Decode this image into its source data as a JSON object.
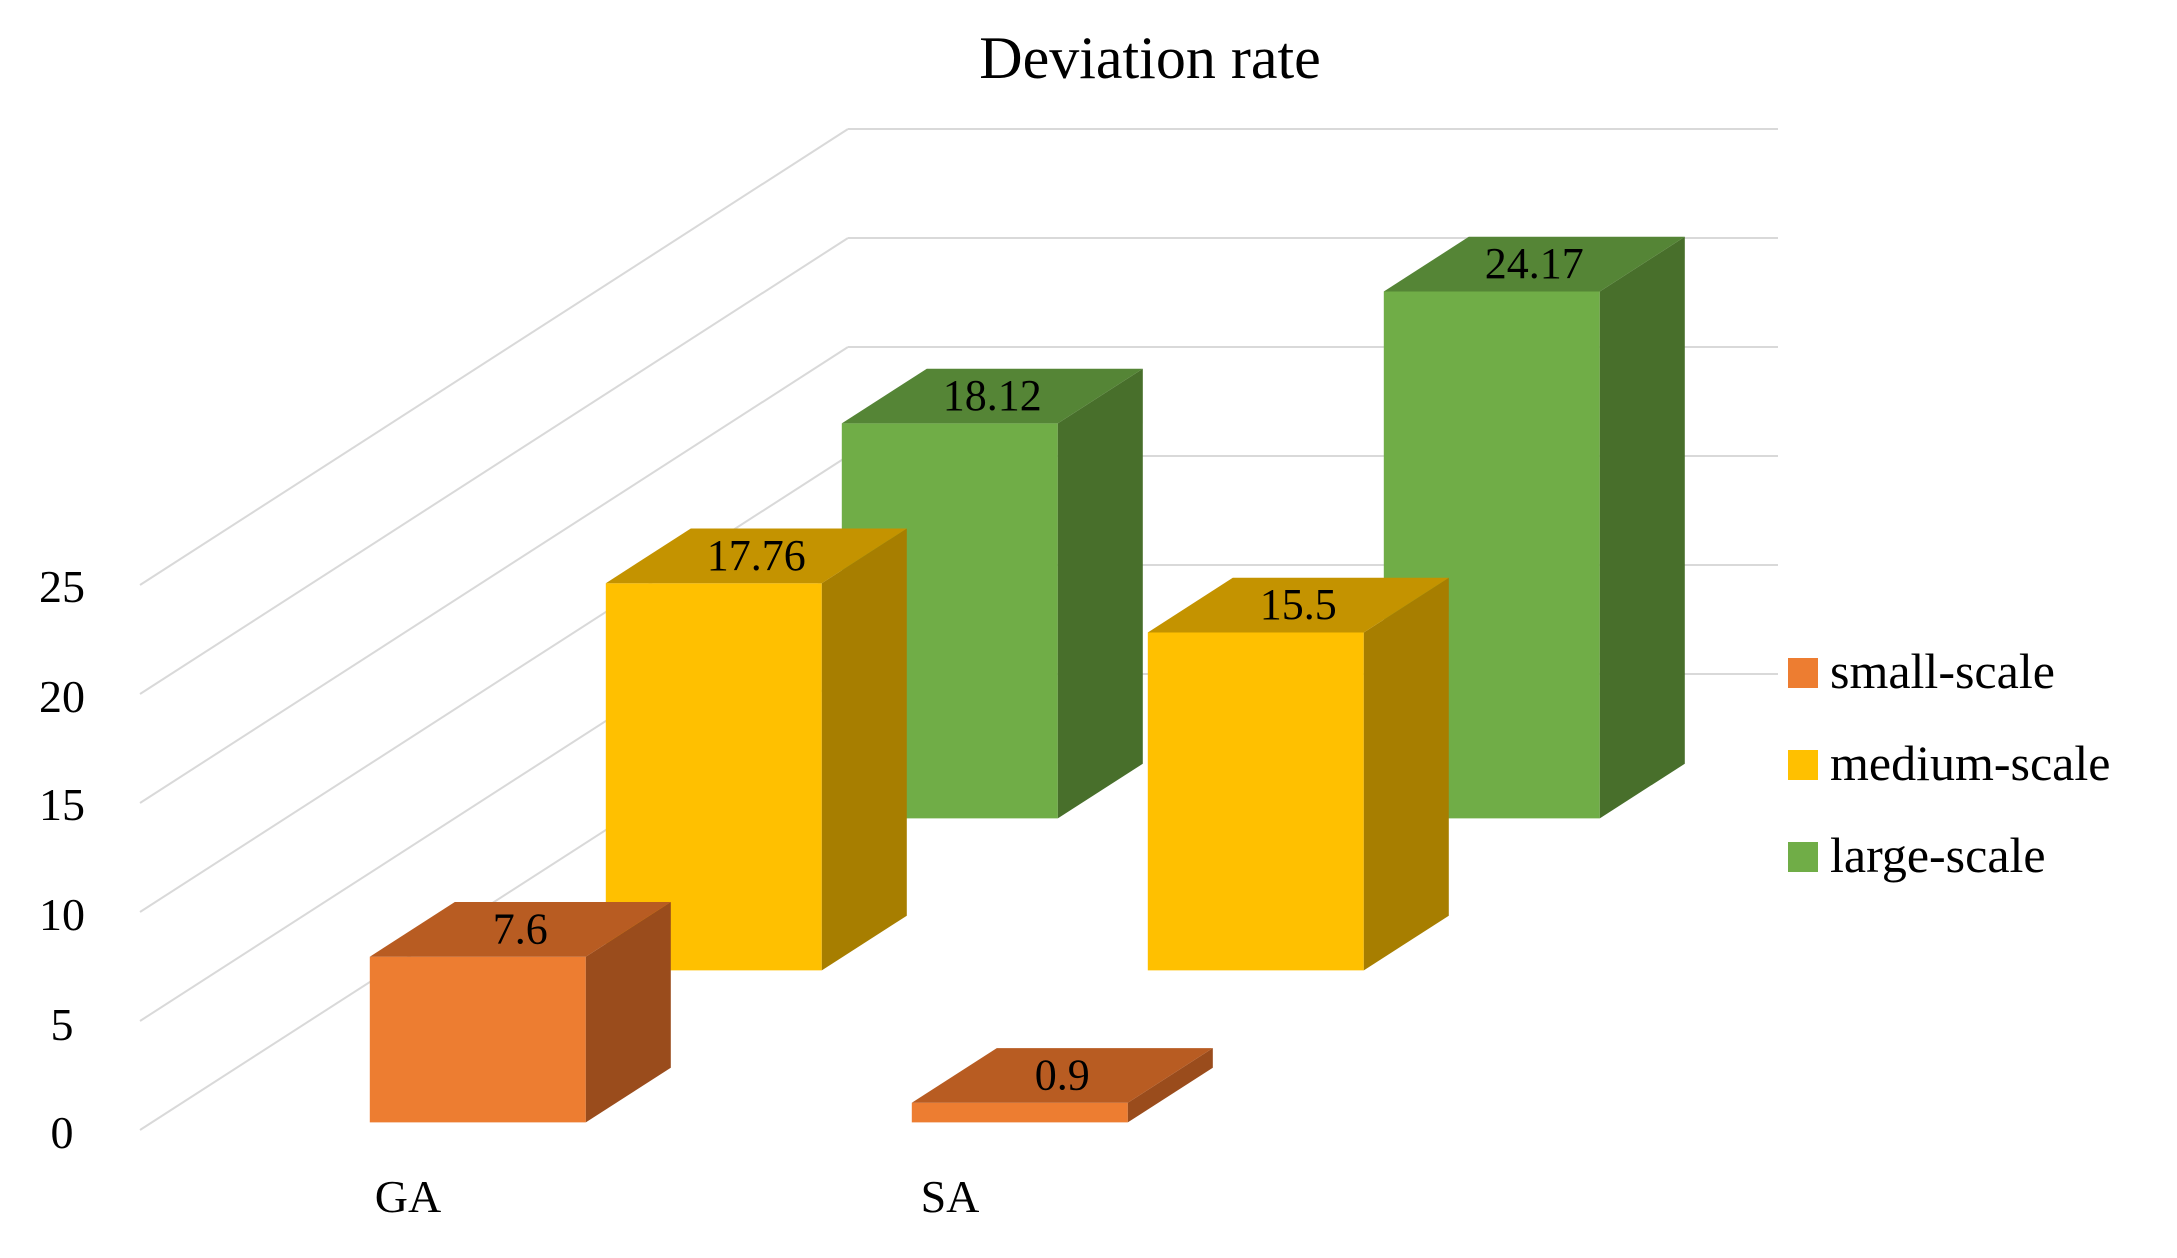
{
  "chart_data": {
    "type": "bar",
    "variant": "3d-column",
    "title": "Deviation rate",
    "xlabel": "",
    "ylabel": "",
    "categories": [
      "GA",
      "SA"
    ],
    "series": [
      {
        "name": "small-scale",
        "values": [
          7.6,
          0.9
        ],
        "labels": [
          "7.6",
          "0.9"
        ],
        "color": "#ED7D31",
        "color_top": "#B85C22",
        "color_side": "#9A4C1C"
      },
      {
        "name": "medium-scale",
        "values": [
          17.76,
          15.5
        ],
        "labels": [
          "17.76",
          "15.5"
        ],
        "color": "#FFC000",
        "color_top": "#C49300",
        "color_side": "#A77E00"
      },
      {
        "name": "large-scale",
        "values": [
          18.12,
          24.17
        ],
        "labels": [
          "18.12",
          "24.17"
        ],
        "color": "#70AD47",
        "color_top": "#558536",
        "color_side": "#486F2B"
      }
    ],
    "y_ticks": [
      "0",
      "5",
      "10",
      "15",
      "20",
      "25"
    ],
    "ylim": [
      0,
      25
    ],
    "grid": true,
    "legend": "right"
  }
}
